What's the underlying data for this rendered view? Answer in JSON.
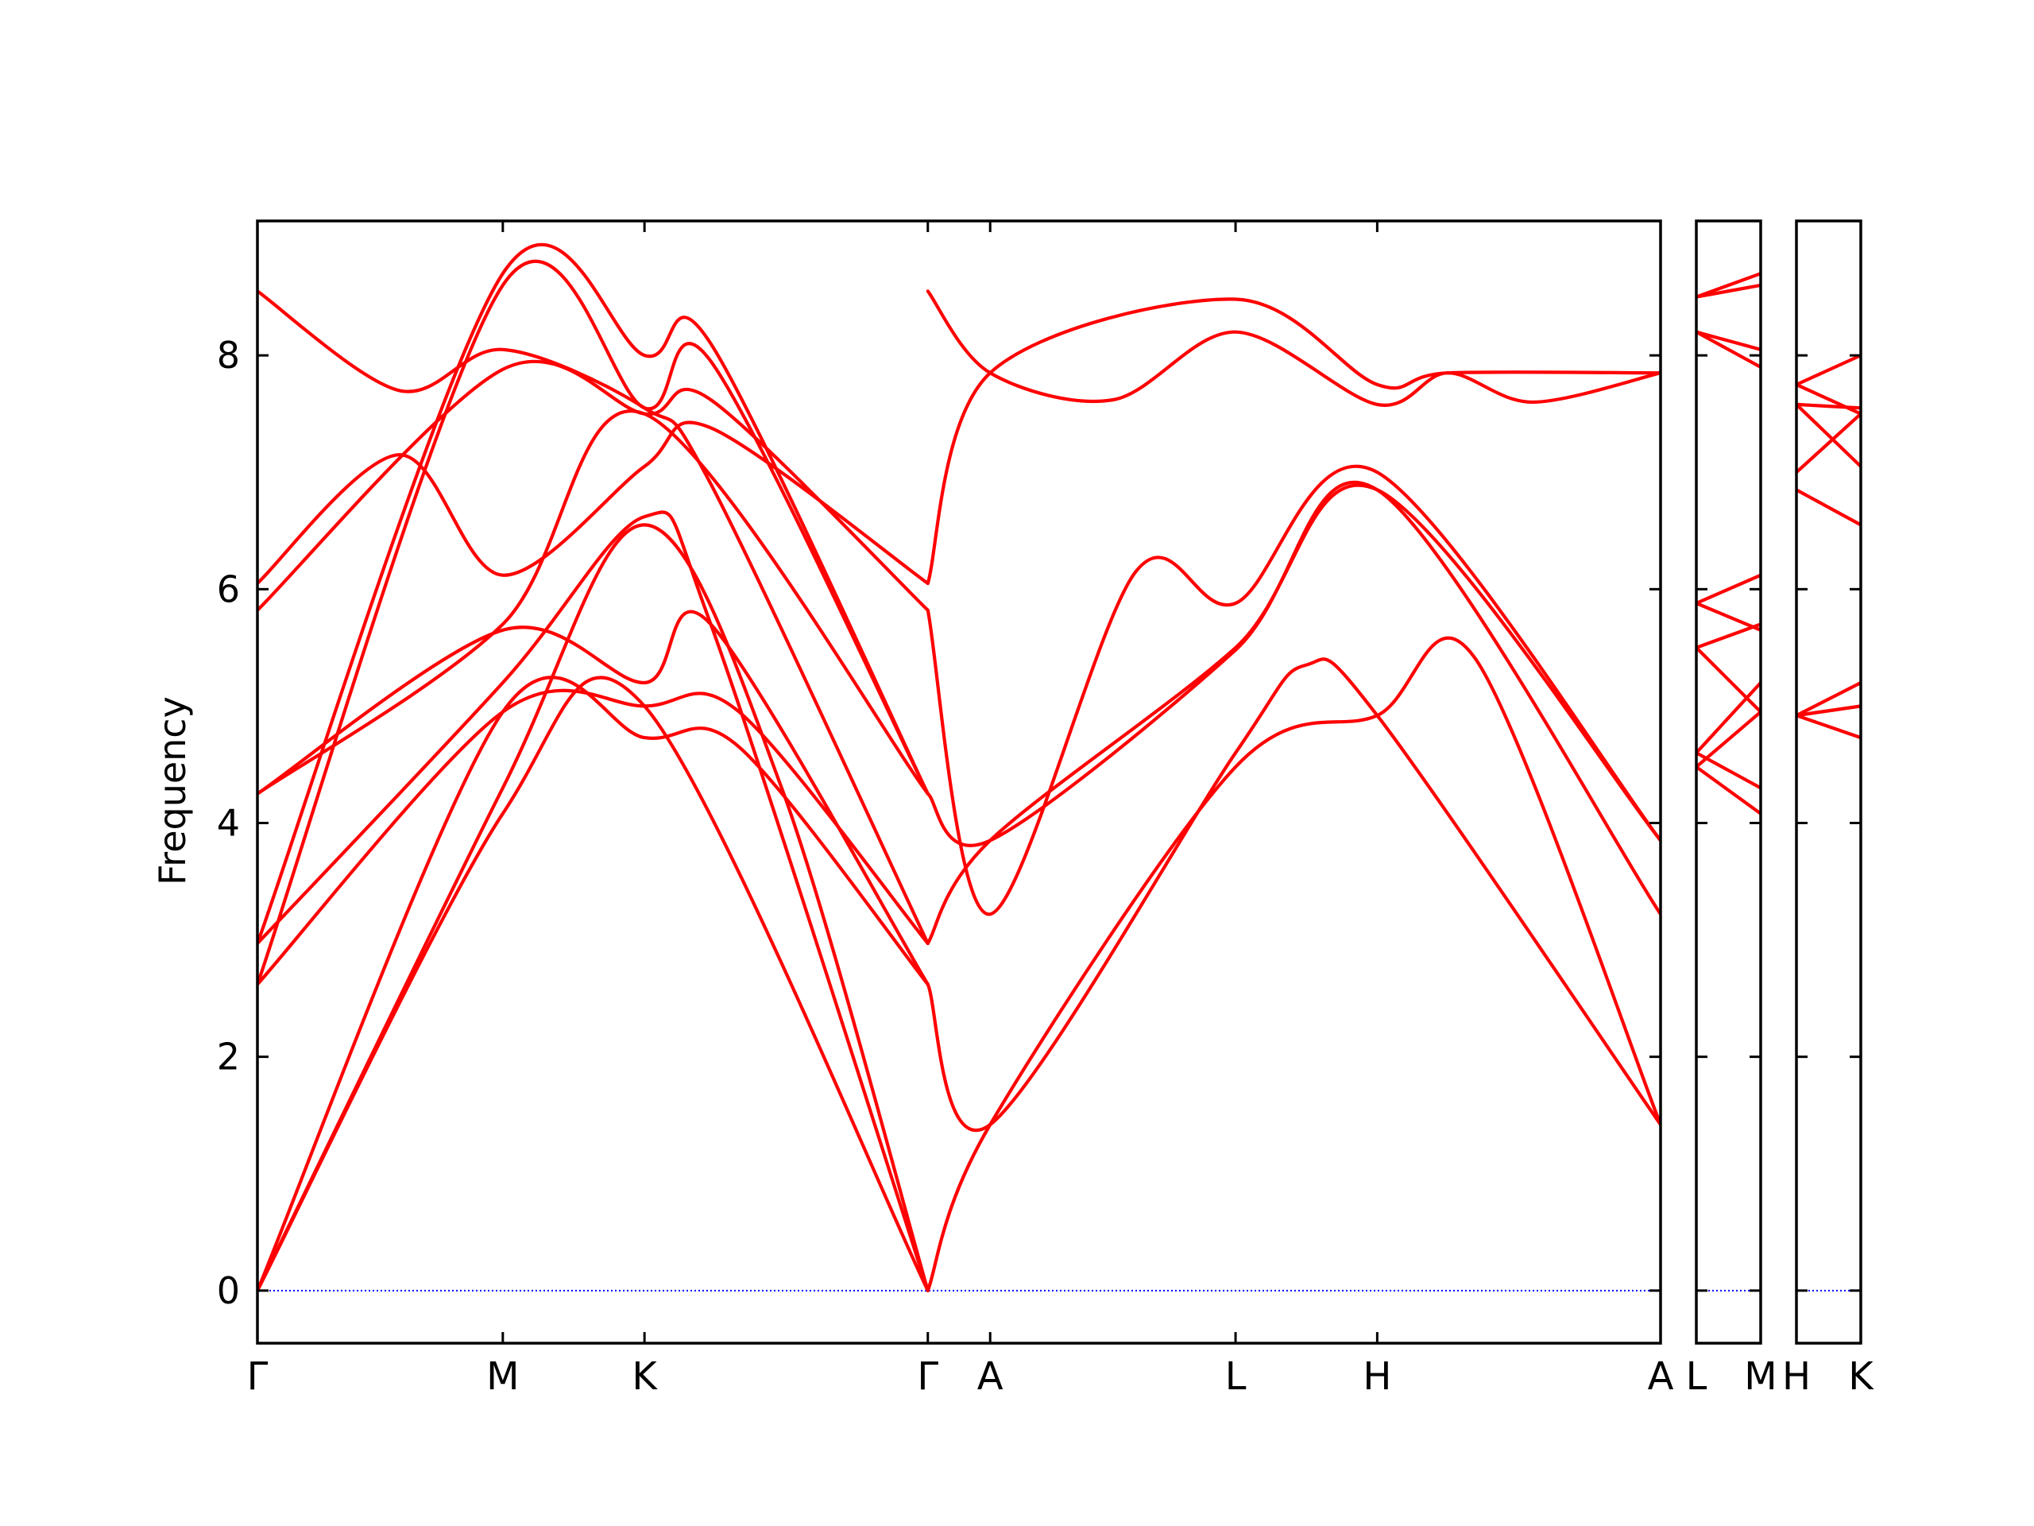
{
  "chart_data": {
    "type": "line",
    "title": "",
    "ylabel": "Frequency",
    "xlabel": "",
    "ylim": [
      -0.45,
      9.15
    ],
    "yticks": [
      0,
      2,
      4,
      6,
      8
    ],
    "zero_line_color": "#0000ff",
    "band_color": "#ff0000",
    "panels": [
      {
        "labels": [
          "Γ",
          "M",
          "K",
          "Γ",
          "A",
          "L",
          "H",
          "A"
        ],
        "x": [
          0,
          0.866,
          1.366,
          2.366,
          2.586,
          3.452,
          3.952,
          4.952
        ],
        "series": [
          {
            "values": [
              [
                0,
                0
              ],
              [
                0.866,
                4.08
              ],
              [
                1.366,
                5.0
              ],
              [
                2.366,
                0
              ]
            ]
          },
          {
            "values": [
              [
                0,
                0
              ],
              [
                0.866,
                4.3
              ],
              [
                1.366,
                6.55
              ],
              [
                1.85,
                4.3
              ],
              [
                2.366,
                0
              ]
            ]
          },
          {
            "values": [
              [
                0,
                0
              ],
              [
                0.866,
                4.95
              ],
              [
                1.366,
                4.73
              ],
              [
                1.7,
                4.65
              ],
              [
                2.366,
                2.62
              ]
            ]
          },
          {
            "values": [
              [
                0,
                2.62
              ],
              [
                0.866,
                4.95
              ],
              [
                1.366,
                5.0
              ],
              [
                1.7,
                4.95
              ],
              [
                2.366,
                2.97
              ]
            ]
          },
          {
            "values": [
              [
                0,
                2.97
              ],
              [
                0.866,
                5.2
              ],
              [
                1.366,
                6.62
              ],
              [
                1.6,
                5.7
              ],
              [
                2.366,
                0
              ]
            ]
          },
          {
            "values": [
              [
                0,
                4.25
              ],
              [
                0.866,
                5.7
              ],
              [
                1.366,
                7.5
              ],
              [
                2.366,
                4.25
              ]
            ]
          },
          {
            "values": [
              [
                0,
                4.25
              ],
              [
                0.866,
                5.65
              ],
              [
                1.366,
                5.2
              ],
              [
                1.6,
                5.7
              ],
              [
                2.366,
                2.62
              ]
            ]
          },
          {
            "values": [
              [
                0,
                5.82
              ],
              [
                0.866,
                7.88
              ],
              [
                1.366,
                7.5
              ],
              [
                1.6,
                7.62
              ],
              [
                2.366,
                5.82
              ]
            ]
          },
          {
            "values": [
              [
                0,
                6.05
              ],
              [
                0.5,
                7.15
              ],
              [
                0.866,
                6.12
              ],
              [
                1.366,
                7.05
              ],
              [
                1.6,
                7.38
              ],
              [
                2.366,
                6.05
              ]
            ]
          },
          {
            "values": [
              [
                0,
                8.55
              ],
              [
                0.5,
                7.7
              ],
              [
                0.866,
                8.05
              ],
              [
                1.366,
                7.55
              ],
              [
                1.6,
                6.9
              ],
              [
                2.366,
                2.97
              ]
            ]
          },
          {
            "values": [
              [
                0,
                2.62
              ],
              [
                0.866,
                8.6
              ],
              [
                1.366,
                7.55
              ],
              [
                1.6,
                7.95
              ],
              [
                2.366,
                4.25
              ]
            ]
          },
          {
            "values": [
              [
                0,
                2.97
              ],
              [
                0.866,
                8.7
              ],
              [
                1.366,
                8.0
              ],
              [
                1.6,
                8.1
              ],
              [
                2.366,
                4.25
              ]
            ]
          },
          {
            "values": [
              [
                2.366,
                6.05
              ],
              [
                2.586,
                7.85
              ],
              [
                3.452,
                8.48
              ],
              [
                3.952,
                7.75
              ],
              [
                4.2,
                7.85
              ],
              [
                4.952,
                7.85
              ]
            ]
          },
          {
            "values": [
              [
                2.366,
                8.55
              ],
              [
                2.586,
                7.85
              ],
              [
                3.02,
                7.62
              ],
              [
                3.452,
                8.2
              ],
              [
                3.952,
                7.58
              ],
              [
                4.2,
                7.85
              ],
              [
                4.5,
                7.6
              ],
              [
                4.952,
                7.85
              ]
            ]
          },
          {
            "values": [
              [
                2.366,
                5.82
              ],
              [
                2.586,
                3.22
              ],
              [
                3.1,
                6.15
              ],
              [
                3.452,
                5.88
              ],
              [
                3.952,
                7.0
              ],
              [
                4.952,
                3.85
              ]
            ]
          },
          {
            "values": [
              [
                2.366,
                4.25
              ],
              [
                2.586,
                3.85
              ],
              [
                3.452,
                5.48
              ],
              [
                3.952,
                6.85
              ],
              [
                4.952,
                3.22
              ]
            ]
          },
          {
            "values": [
              [
                2.366,
                2.62
              ],
              [
                2.586,
                1.42
              ],
              [
                3.452,
                4.6
              ],
              [
                3.7,
                5.35
              ],
              [
                3.952,
                4.92
              ],
              [
                4.952,
                1.42
              ]
            ]
          },
          {
            "values": [
              [
                2.366,
                0
              ],
              [
                2.586,
                1.42
              ],
              [
                3.452,
                4.48
              ],
              [
                3.952,
                4.92
              ],
              [
                4.3,
                5.4
              ],
              [
                4.952,
                1.42
              ]
            ]
          },
          {
            "values": [
              [
                2.366,
                2.97
              ],
              [
                2.586,
                3.85
              ],
              [
                3.452,
                5.5
              ],
              [
                3.952,
                6.85
              ],
              [
                4.952,
                3.85
              ]
            ]
          }
        ]
      },
      {
        "labels": [
          "L",
          "M"
        ],
        "x": [
          0,
          0.5
        ],
        "series": [
          {
            "values": [
              [
                0,
                8.5
              ],
              [
                0.5,
                8.7
              ]
            ]
          },
          {
            "values": [
              [
                0,
                8.5
              ],
              [
                0.5,
                8.6
              ]
            ]
          },
          {
            "values": [
              [
                0,
                8.2
              ],
              [
                0.5,
                8.05
              ]
            ]
          },
          {
            "values": [
              [
                0,
                8.2
              ],
              [
                0.5,
                7.9
              ]
            ]
          },
          {
            "values": [
              [
                0,
                5.88
              ],
              [
                0.5,
                6.12
              ]
            ]
          },
          {
            "values": [
              [
                0,
                5.88
              ],
              [
                0.5,
                5.65
              ]
            ]
          },
          {
            "values": [
              [
                0,
                5.5
              ],
              [
                0.5,
                5.7
              ]
            ]
          },
          {
            "values": [
              [
                0,
                5.5
              ],
              [
                0.5,
                4.95
              ]
            ]
          },
          {
            "values": [
              [
                0,
                4.6
              ],
              [
                0.5,
                5.2
              ]
            ]
          },
          {
            "values": [
              [
                0,
                4.48
              ],
              [
                0.5,
                4.95
              ]
            ]
          },
          {
            "values": [
              [
                0,
                4.6
              ],
              [
                0.5,
                4.3
              ]
            ]
          },
          {
            "values": [
              [
                0,
                4.48
              ],
              [
                0.5,
                4.08
              ]
            ]
          }
        ]
      },
      {
        "labels": [
          "H",
          "K"
        ],
        "x": [
          0,
          0.5
        ],
        "series": [
          {
            "values": [
              [
                0,
                7.75
              ],
              [
                0.5,
                8.0
              ]
            ]
          },
          {
            "values": [
              [
                0,
                7.75
              ],
              [
                0.5,
                7.5
              ]
            ]
          },
          {
            "values": [
              [
                0,
                7.58
              ],
              [
                0.5,
                7.55
              ]
            ]
          },
          {
            "values": [
              [
                0,
                7.58
              ],
              [
                0.5,
                7.05
              ]
            ]
          },
          {
            "values": [
              [
                0,
                7.0
              ],
              [
                0.5,
                7.5
              ]
            ]
          },
          {
            "values": [
              [
                0,
                6.85
              ],
              [
                0.5,
                6.55
              ]
            ]
          },
          {
            "values": [
              [
                0,
                4.92
              ],
              [
                0.5,
                5.2
              ]
            ]
          },
          {
            "values": [
              [
                0,
                4.92
              ],
              [
                0.5,
                5.0
              ]
            ]
          },
          {
            "values": [
              [
                0,
                4.92
              ],
              [
                0.5,
                4.73
              ]
            ]
          },
          {
            "values": [
              [
                0,
                4.92
              ],
              [
                0.5,
                5.0
              ]
            ]
          }
        ]
      }
    ]
  }
}
